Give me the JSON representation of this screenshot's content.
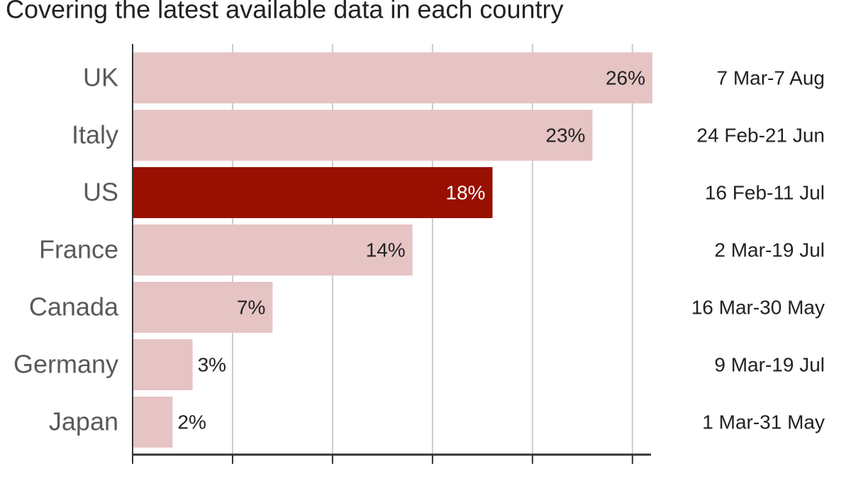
{
  "chart_data": {
    "type": "bar",
    "orientation": "horizontal",
    "subtitle": "Covering the latest available data in each country",
    "categories": [
      "UK",
      "Italy",
      "US",
      "France",
      "Canada",
      "Germany",
      "Japan"
    ],
    "values": [
      26,
      23,
      18,
      14,
      7,
      3,
      2
    ],
    "value_labels": [
      "26%",
      "23%",
      "18%",
      "14%",
      "7%",
      "3%",
      "2%"
    ],
    "periods": [
      "7 Mar-7 Aug",
      "24 Feb-21 Jun",
      "16 Feb-11 Jul",
      "2 Mar-19 Jul",
      "16 Mar-30 May",
      "9 Mar-19 Jul",
      "1 Mar-31 May"
    ],
    "colors": [
      "#e6c4c4",
      "#e6c4c4",
      "#990f00",
      "#e6c4c4",
      "#e6c4c4",
      "#e6c4c4",
      "#e6c4c4"
    ],
    "xlim": [
      0,
      26
    ],
    "xticks": [
      0,
      5,
      10,
      15,
      20,
      25
    ],
    "grid": true
  }
}
